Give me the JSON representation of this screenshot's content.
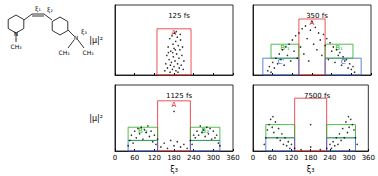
{
  "chart_data": [
    {
      "type": "scatter",
      "title": "125 fs",
      "y_label": "|μ|²",
      "color": "#000000",
      "marker": "circle",
      "xlim": [
        0,
        360
      ],
      "xticks": [
        0,
        60,
        120,
        180,
        240,
        300,
        360
      ],
      "ylim": [
        0,
        50
      ],
      "tick_labels": false,
      "points": [
        [
          152,
          3
        ],
        [
          155,
          8
        ],
        [
          158,
          14
        ],
        [
          160,
          5
        ],
        [
          162,
          20
        ],
        [
          165,
          11
        ],
        [
          167,
          26
        ],
        [
          168,
          2
        ],
        [
          170,
          17
        ],
        [
          172,
          9
        ],
        [
          174,
          28
        ],
        [
          175,
          4
        ],
        [
          177,
          22
        ],
        [
          178,
          13
        ],
        [
          180,
          6
        ],
        [
          180,
          19
        ],
        [
          182,
          30
        ],
        [
          183,
          10
        ],
        [
          185,
          24
        ],
        [
          186,
          3
        ],
        [
          188,
          15
        ],
        [
          190,
          27
        ],
        [
          191,
          8
        ],
        [
          193,
          21
        ],
        [
          195,
          12
        ],
        [
          196,
          5
        ],
        [
          198,
          18
        ],
        [
          200,
          25
        ],
        [
          202,
          7
        ],
        [
          204,
          14
        ],
        [
          206,
          20
        ],
        [
          208,
          4
        ],
        [
          210,
          10
        ],
        [
          176,
          16
        ],
        [
          184,
          18
        ],
        [
          192,
          2
        ],
        [
          169,
          7
        ],
        [
          199,
          29
        ],
        [
          187,
          31
        ],
        [
          163,
          16
        ]
      ],
      "regions": [
        {
          "label": "A",
          "x": [
            128,
            232
          ],
          "y": [
            0,
            33
          ],
          "color": "#e8262c"
        }
      ]
    },
    {
      "type": "scatter",
      "title": "350 fs",
      "color": "#000000",
      "marker": "circle",
      "xlim": [
        0,
        360
      ],
      "xticks": [
        0,
        60,
        120,
        180,
        240,
        300,
        360
      ],
      "ylim": [
        0,
        50
      ],
      "tick_labels": false,
      "points": [
        [
          45,
          3
        ],
        [
          50,
          6
        ],
        [
          55,
          2
        ],
        [
          60,
          9
        ],
        [
          65,
          5
        ],
        [
          70,
          12
        ],
        [
          75,
          8
        ],
        [
          80,
          15
        ],
        [
          85,
          11
        ],
        [
          90,
          18
        ],
        [
          95,
          7
        ],
        [
          100,
          20
        ],
        [
          105,
          14
        ],
        [
          110,
          22
        ],
        [
          115,
          10
        ],
        [
          120,
          25
        ],
        [
          125,
          17
        ],
        [
          130,
          28
        ],
        [
          135,
          12
        ],
        [
          140,
          30
        ],
        [
          145,
          20
        ],
        [
          150,
          33
        ],
        [
          155,
          15
        ],
        [
          160,
          35
        ],
        [
          165,
          26
        ],
        [
          170,
          10
        ],
        [
          175,
          32
        ],
        [
          180,
          38
        ],
        [
          185,
          22
        ],
        [
          190,
          34
        ],
        [
          195,
          18
        ],
        [
          200,
          30
        ],
        [
          205,
          25
        ],
        [
          210,
          14
        ],
        [
          215,
          29
        ],
        [
          220,
          21
        ],
        [
          225,
          26
        ],
        [
          230,
          11
        ],
        [
          235,
          23
        ],
        [
          240,
          17
        ],
        [
          245,
          20
        ],
        [
          250,
          9
        ],
        [
          255,
          18
        ],
        [
          260,
          14
        ],
        [
          265,
          16
        ],
        [
          270,
          7
        ],
        [
          275,
          13
        ],
        [
          280,
          10
        ],
        [
          285,
          11
        ],
        [
          290,
          5
        ],
        [
          295,
          8
        ],
        [
          300,
          4
        ],
        [
          305,
          6
        ],
        [
          310,
          2
        ]
      ],
      "regions": [
        {
          "label": "A",
          "x": [
            140,
            220
          ],
          "y": [
            0,
            40
          ],
          "color": "#e8262c"
        },
        {
          "label": "C'",
          "x": [
            30,
            140
          ],
          "y": [
            0,
            12
          ],
          "color": "#3a5fd0"
        },
        {
          "label": "C",
          "x": [
            220,
            330
          ],
          "y": [
            0,
            12
          ],
          "color": "#3a5fd0"
        },
        {
          "label": "B'₁",
          "x": [
            55,
            140
          ],
          "y": [
            12,
            22
          ],
          "color": "#22b022"
        },
        {
          "label": "B₁",
          "x": [
            220,
            305
          ],
          "y": [
            12,
            22
          ],
          "color": "#22b022"
        }
      ]
    },
    {
      "type": "scatter",
      "title": "1125 fs",
      "x_label": "ξ₃",
      "y_label": "|μ|²",
      "color": "#000000",
      "marker": "circle",
      "xlim": [
        0,
        360
      ],
      "xticks": [
        0,
        60,
        120,
        180,
        240,
        300,
        360
      ],
      "ylim": [
        0,
        50
      ],
      "tick_labels": "x",
      "points": [
        [
          40,
          4
        ],
        [
          45,
          8
        ],
        [
          50,
          12
        ],
        [
          55,
          6
        ],
        [
          60,
          15
        ],
        [
          65,
          10
        ],
        [
          70,
          17
        ],
        [
          75,
          13
        ],
        [
          80,
          18
        ],
        [
          85,
          9
        ],
        [
          90,
          16
        ],
        [
          95,
          14
        ],
        [
          100,
          19
        ],
        [
          105,
          11
        ],
        [
          110,
          15
        ],
        [
          115,
          7
        ],
        [
          120,
          12
        ],
        [
          125,
          5
        ],
        [
          130,
          9
        ],
        [
          140,
          3
        ],
        [
          150,
          6
        ],
        [
          160,
          2
        ],
        [
          170,
          8
        ],
        [
          180,
          30
        ],
        [
          180,
          4
        ],
        [
          190,
          7
        ],
        [
          200,
          3
        ],
        [
          210,
          5
        ],
        [
          220,
          2
        ],
        [
          230,
          8
        ],
        [
          235,
          5
        ],
        [
          240,
          12
        ],
        [
          245,
          10
        ],
        [
          250,
          15
        ],
        [
          255,
          12
        ],
        [
          260,
          19
        ],
        [
          265,
          14
        ],
        [
          270,
          16
        ],
        [
          275,
          11
        ],
        [
          280,
          18
        ],
        [
          285,
          13
        ],
        [
          290,
          17
        ],
        [
          295,
          9
        ],
        [
          300,
          15
        ],
        [
          305,
          10
        ],
        [
          310,
          12
        ],
        [
          315,
          6
        ],
        [
          320,
          4
        ]
      ],
      "regions": [
        {
          "label": "A",
          "x": [
            130,
            230
          ],
          "y": [
            0,
            38
          ],
          "color": "#e8262c"
        },
        {
          "x": [
            40,
            130
          ],
          "y": [
            0,
            8
          ],
          "color": "#3a5fd0"
        },
        {
          "x": [
            230,
            320
          ],
          "y": [
            0,
            8
          ],
          "color": "#3a5fd0"
        },
        {
          "label": "B'₂",
          "x": [
            40,
            130
          ],
          "y": [
            8,
            18
          ],
          "color": "#22b022"
        },
        {
          "label": "B₂",
          "x": [
            230,
            320
          ],
          "y": [
            8,
            18
          ],
          "color": "#22b022"
        }
      ]
    },
    {
      "type": "scatter",
      "title": "7500 fs",
      "x_label": "ξ₃",
      "color": "#000000",
      "marker": "circle",
      "xlim": [
        0,
        360
      ],
      "xticks": [
        0,
        60,
        120,
        180,
        240,
        300,
        360
      ],
      "ylim": [
        0,
        50
      ],
      "tick_labels": "x",
      "points": [
        [
          35,
          5
        ],
        [
          40,
          10
        ],
        [
          45,
          16
        ],
        [
          50,
          20
        ],
        [
          55,
          24
        ],
        [
          60,
          18
        ],
        [
          62,
          26
        ],
        [
          65,
          14
        ],
        [
          70,
          22
        ],
        [
          75,
          10
        ],
        [
          80,
          17
        ],
        [
          85,
          8
        ],
        [
          90,
          13
        ],
        [
          95,
          5
        ],
        [
          100,
          10
        ],
        [
          105,
          4
        ],
        [
          110,
          7
        ],
        [
          115,
          2
        ],
        [
          120,
          5
        ],
        [
          130,
          2
        ],
        [
          150,
          1
        ],
        [
          180,
          20
        ],
        [
          180,
          3
        ],
        [
          210,
          1
        ],
        [
          230,
          2
        ],
        [
          240,
          5
        ],
        [
          245,
          2
        ],
        [
          250,
          7
        ],
        [
          255,
          4
        ],
        [
          260,
          10
        ],
        [
          265,
          5
        ],
        [
          270,
          13
        ],
        [
          275,
          8
        ],
        [
          280,
          17
        ],
        [
          285,
          10
        ],
        [
          290,
          22
        ],
        [
          295,
          14
        ],
        [
          298,
          26
        ],
        [
          300,
          18
        ],
        [
          305,
          24
        ],
        [
          310,
          20
        ],
        [
          315,
          16
        ],
        [
          320,
          10
        ],
        [
          325,
          5
        ]
      ],
      "regions": [
        {
          "x": [
            130,
            230
          ],
          "y": [
            0,
            40
          ],
          "color": "#e8262c"
        },
        {
          "x": [
            40,
            130
          ],
          "y": [
            0,
            10
          ],
          "color": "#3a5fd0"
        },
        {
          "x": [
            230,
            320
          ],
          "y": [
            0,
            10
          ],
          "color": "#3a5fd0"
        },
        {
          "x": [
            40,
            130
          ],
          "y": [
            10,
            20
          ],
          "color": "#22b022"
        },
        {
          "x": [
            230,
            320
          ],
          "y": [
            10,
            20
          ],
          "color": "#22b022"
        }
      ]
    }
  ],
  "structure": {
    "labels": [
      "N",
      "CH₃",
      "ξ₁",
      "ξ₂",
      "ξ₃",
      "N",
      "CH₃",
      "CH₃"
    ]
  }
}
